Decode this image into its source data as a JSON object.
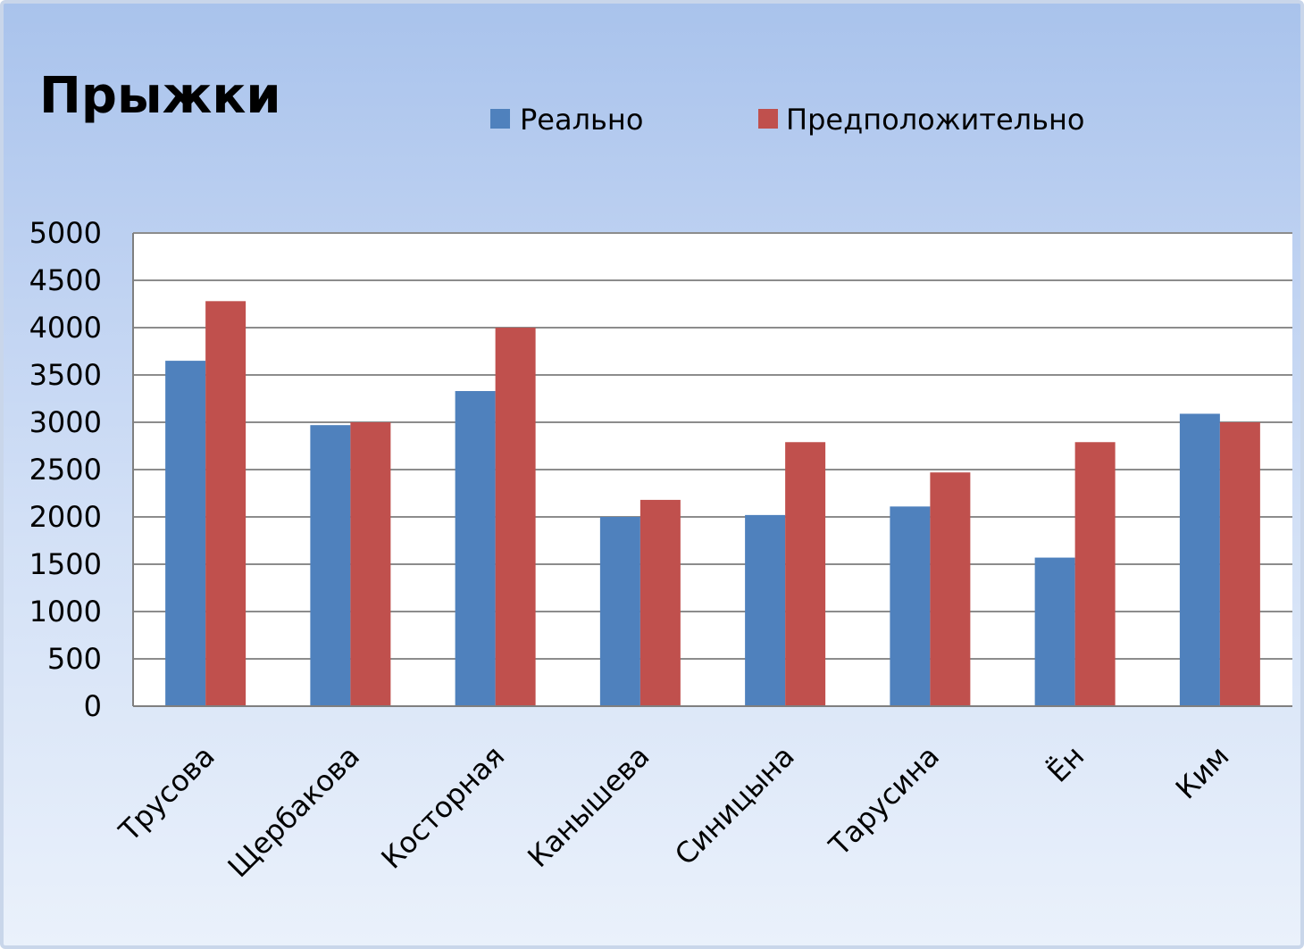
{
  "chart_data": {
    "type": "bar",
    "title": "Прыжки",
    "xlabel": "",
    "ylabel": "",
    "categories": [
      "Трусова",
      "Щербакова",
      "Косторная",
      "Канышева",
      "Синицына",
      "Тарусина",
      "Ён",
      "Ким"
    ],
    "series": [
      {
        "name": "Реально",
        "color": "#4f81bd",
        "values": [
          3650,
          2970,
          3330,
          2000,
          2020,
          2110,
          1570,
          3090
        ]
      },
      {
        "name": "Предположительно",
        "color": "#c0504d",
        "values": [
          4280,
          3000,
          4000,
          2180,
          2790,
          2470,
          2790,
          3000
        ]
      }
    ],
    "ylim": [
      0,
      5000
    ],
    "yticks": [
      0,
      500,
      1000,
      1500,
      2000,
      2500,
      3000,
      3500,
      4000,
      4500,
      5000
    ],
    "grid": true,
    "legend_position": "top"
  }
}
